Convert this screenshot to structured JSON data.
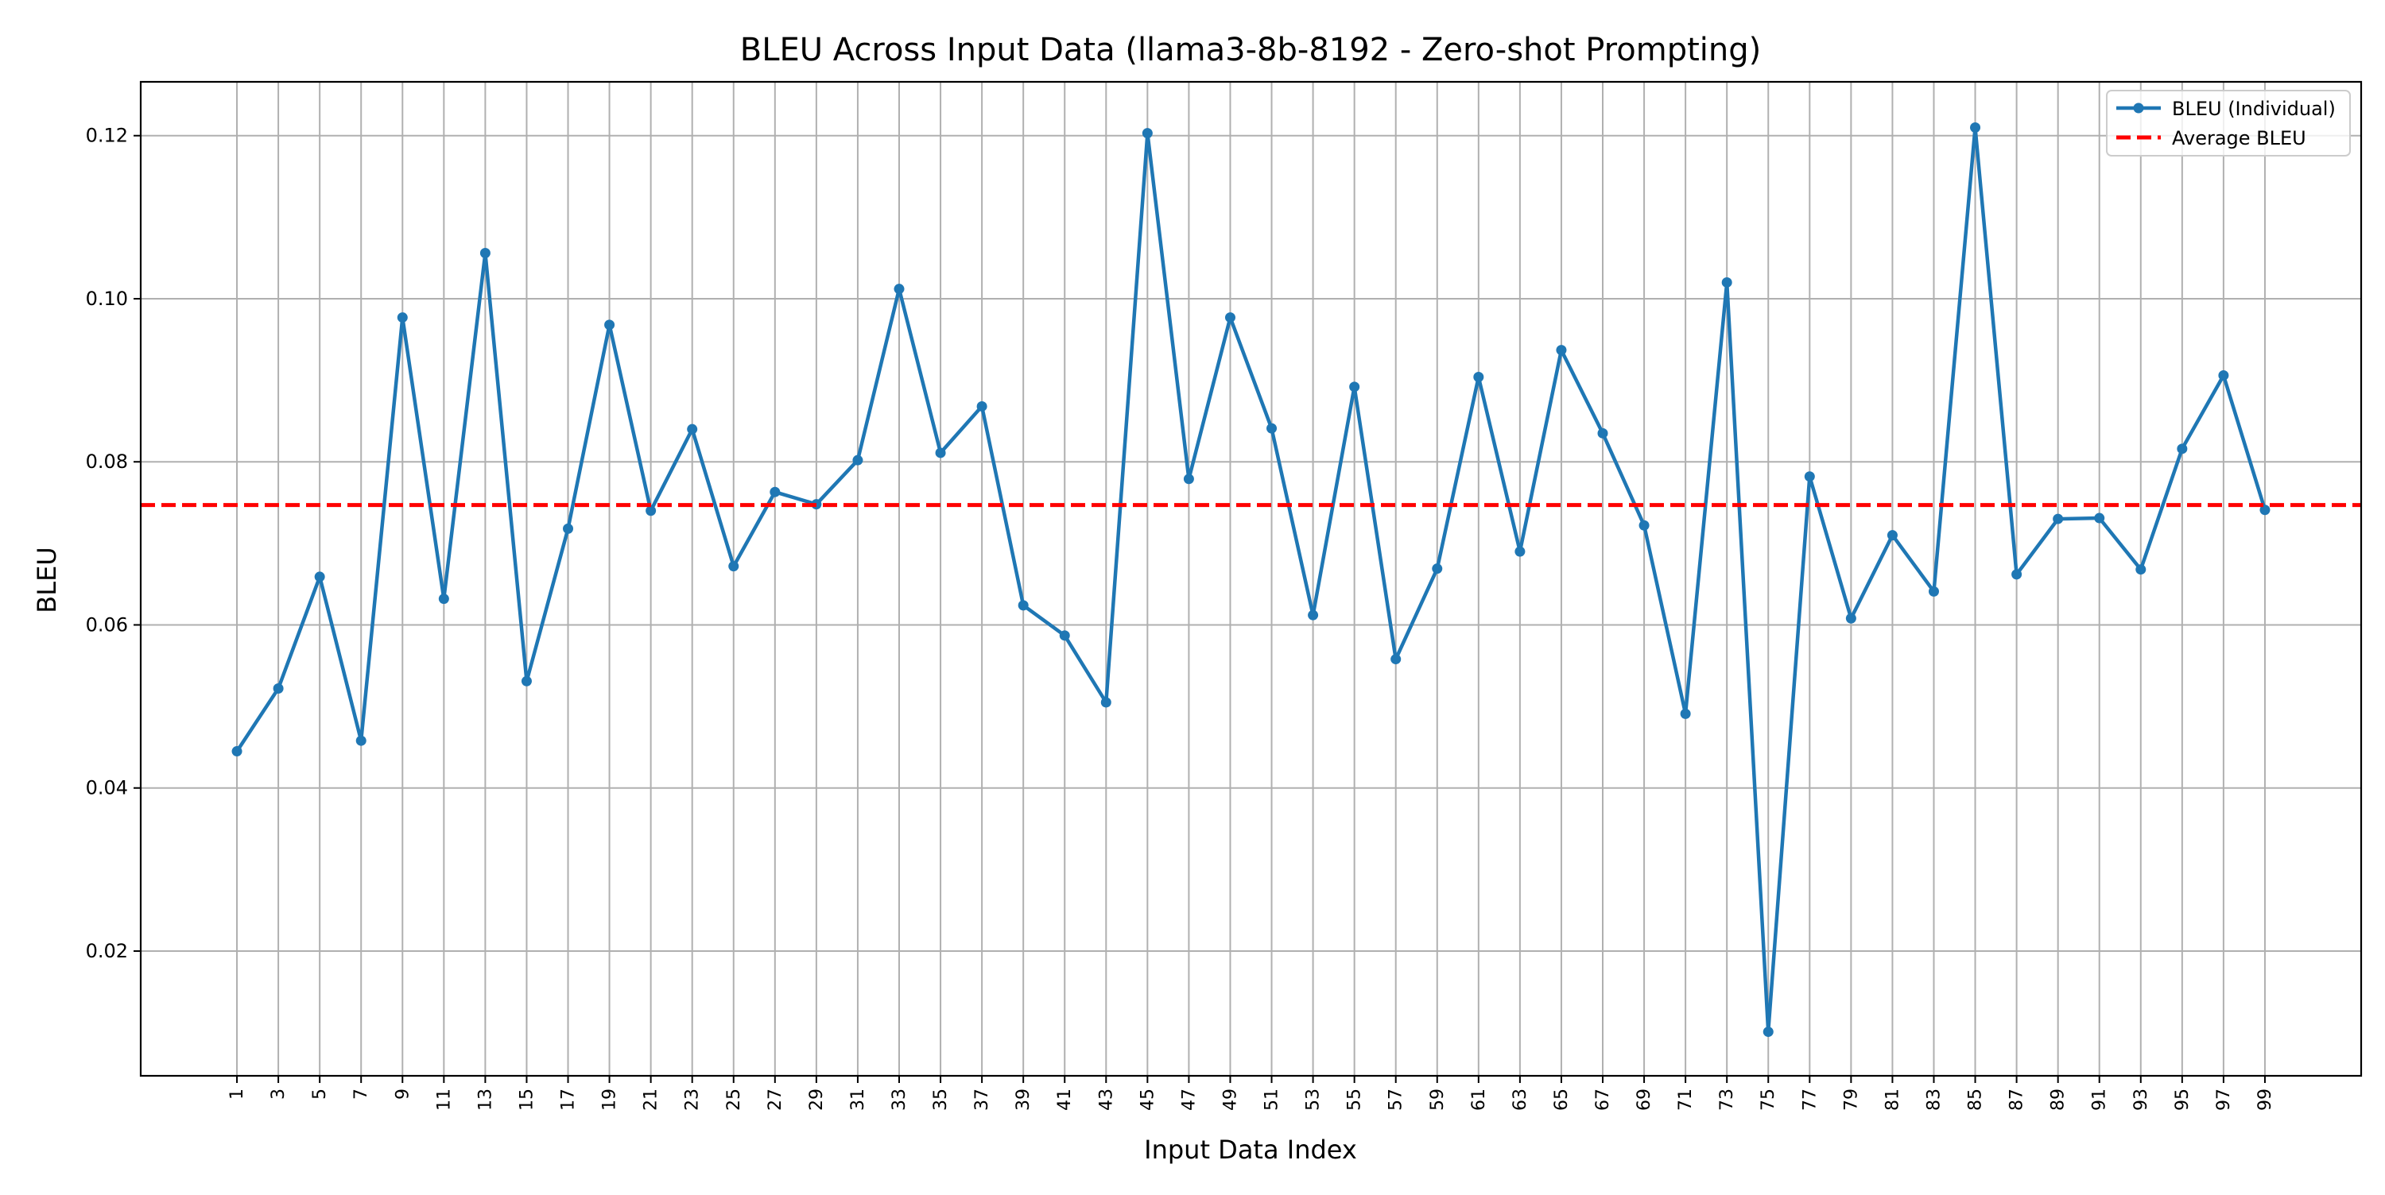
{
  "chart_data": {
    "type": "line",
    "title": "BLEU Across Input Data (llama3-8b-8192 - Zero-shot Prompting)",
    "xlabel": "Input Data Index",
    "ylabel": "BLEU",
    "x": [
      1,
      3,
      5,
      7,
      9,
      11,
      13,
      15,
      17,
      19,
      21,
      23,
      25,
      27,
      29,
      31,
      33,
      35,
      37,
      39,
      41,
      43,
      45,
      47,
      49,
      51,
      53,
      55,
      57,
      59,
      61,
      63,
      65,
      67,
      69,
      71,
      73,
      75,
      77,
      79,
      81,
      83,
      85,
      87,
      89,
      91,
      93,
      95,
      97,
      99
    ],
    "xticks": [
      "1",
      "3",
      "5",
      "7",
      "9",
      "11",
      "13",
      "15",
      "17",
      "19",
      "21",
      "23",
      "25",
      "27",
      "29",
      "31",
      "33",
      "35",
      "37",
      "39",
      "41",
      "43",
      "45",
      "47",
      "49",
      "51",
      "53",
      "55",
      "57",
      "59",
      "61",
      "63",
      "65",
      "67",
      "69",
      "71",
      "73",
      "75",
      "77",
      "79",
      "81",
      "83",
      "85",
      "87",
      "89",
      "91",
      "93",
      "95",
      "97",
      "99"
    ],
    "yticks": [
      "0.02",
      "0.04",
      "0.06",
      "0.08",
      "0.10",
      "0.12"
    ],
    "ytick_values": [
      0.02,
      0.04,
      0.06,
      0.08,
      0.1,
      0.12
    ],
    "xlim": [
      -3.65,
      103.65
    ],
    "ylim": [
      0.0047,
      0.1266
    ],
    "grid": true,
    "legend_position": "top-right",
    "series": [
      {
        "name": "BLEU (Individual)",
        "color": "#1f77b4",
        "marker": "circle",
        "values": [
          0.0445,
          0.0522,
          0.0659,
          0.0458,
          0.0977,
          0.0632,
          0.1056,
          0.0531,
          0.0718,
          0.0968,
          0.074,
          0.084,
          0.0672,
          0.0763,
          0.0748,
          0.0802,
          0.1012,
          0.0811,
          0.0868,
          0.0624,
          0.0587,
          0.0505,
          0.1203,
          0.0779,
          0.0977,
          0.0841,
          0.0612,
          0.0892,
          0.0558,
          0.0669,
          0.0904,
          0.069,
          0.0937,
          0.0835,
          0.0722,
          0.0491,
          0.102,
          0.0101,
          0.0782,
          0.0608,
          0.071,
          0.0641,
          0.121,
          0.0662,
          0.073,
          0.0731,
          0.0668,
          0.0816,
          0.0906,
          0.0741
        ]
      },
      {
        "name": "Average BLEU",
        "color": "#ff0000",
        "style": "dashed",
        "value": 0.0747
      }
    ]
  }
}
